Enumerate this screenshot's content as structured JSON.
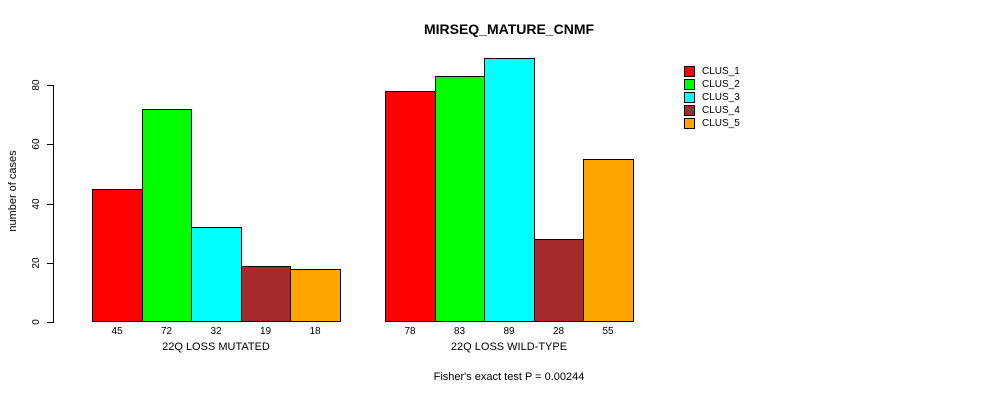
{
  "chart_data": {
    "type": "bar",
    "title": "MIRSEQ_MATURE_CNMF",
    "ylabel": "number of cases",
    "xlabel": "",
    "footer": "Fisher's exact test P = 0.00244",
    "y_ticks": [
      0,
      20,
      40,
      60,
      80
    ],
    "ylim": [
      0,
      90
    ],
    "grid": false,
    "legend_position": "right-outside",
    "value_labels_shown": true,
    "categories": [
      "22Q LOSS MUTATED",
      "22Q LOSS WILD-TYPE"
    ],
    "series": [
      {
        "name": "CLUS_1",
        "color": "#ff0000",
        "values": [
          45,
          78
        ]
      },
      {
        "name": "CLUS_2",
        "color": "#00ff00",
        "values": [
          72,
          83
        ]
      },
      {
        "name": "CLUS_3",
        "color": "#00ffff",
        "values": [
          32,
          89
        ]
      },
      {
        "name": "CLUS_4",
        "color": "#a52a2a",
        "values": [
          19,
          28
        ]
      },
      {
        "name": "CLUS_5",
        "color": "#ffa500",
        "values": [
          18,
          55
        ]
      }
    ]
  }
}
